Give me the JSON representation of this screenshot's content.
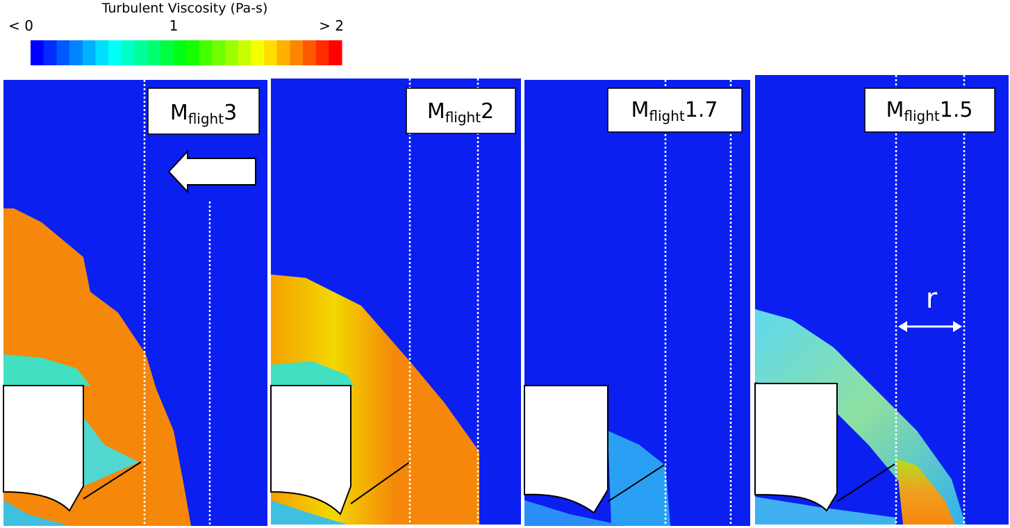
{
  "colorbar": {
    "title": "Turbulent Viscosity (Pa-s)",
    "min_label": "< 0",
    "mid_label": "1",
    "max_label": "> 2"
  },
  "panels": [
    {
      "symbol": "M",
      "subscript": "flight",
      "value": "3"
    },
    {
      "symbol": "M",
      "subscript": "flight",
      "value": "2"
    },
    {
      "symbol": "M",
      "subscript": "flight",
      "value": "1.7"
    },
    {
      "symbol": "M",
      "subscript": "flight",
      "value": "1.5"
    }
  ],
  "annotation": "r"
}
